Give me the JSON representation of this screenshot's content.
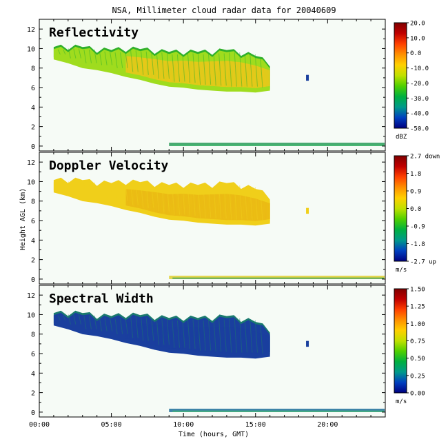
{
  "title": "NSA, Millimeter cloud radar data for 20040609",
  "xlabel": "Time (hours, GMT)",
  "ylabel": "Height AGL (km)",
  "x_ticks": [
    "00:00",
    "05:00",
    "10:00",
    "15:00",
    "20:00"
  ],
  "y_ticks": [
    "0",
    "2",
    "4",
    "6",
    "8",
    "10",
    "12"
  ],
  "chart_data": [
    {
      "type": "heatmap",
      "title": "Reflectivity",
      "xlim": [
        0,
        24
      ],
      "ylim": [
        -0.5,
        13
      ],
      "colorbar": {
        "ticks": [
          "20.0",
          "10.0",
          "0.0",
          "-10.0",
          "-20.0",
          "-30.0",
          "-40.0",
          "-50.0"
        ],
        "unit": "dBZ",
        "range": [
          -50,
          20
        ]
      },
      "cloud": {
        "start_hr": 1.0,
        "end_hr": 16.0,
        "top_km": [
          9.9,
          10.0,
          9.9,
          9.7,
          9.6,
          9.8,
          9.7,
          9.6,
          9.4,
          9.5,
          9.4,
          9.5,
          9.6,
          9.4,
          9.0,
          8.3
        ],
        "base_km": [
          9.1,
          8.7,
          8.2,
          8.0,
          7.7,
          7.3,
          7.0,
          6.6,
          6.3,
          6.2,
          6.0,
          5.9,
          5.8,
          5.8,
          5.7,
          5.9
        ]
      },
      "isolated_echo": {
        "time_hr": 18.6,
        "height_km": 7.0
      },
      "surface_echo_from_hr": 9.0
    },
    {
      "type": "heatmap",
      "title": "Doppler Velocity",
      "xlim": [
        0,
        24
      ],
      "ylim": [
        -0.5,
        13
      ],
      "colorbar": {
        "ticks": [
          "2.7 down",
          "1.8",
          "0.9",
          "0.0",
          "-0.9",
          "-1.8",
          "-2.7 up"
        ],
        "unit": "m/s",
        "range": [
          -2.7,
          2.7
        ]
      },
      "cloud": {
        "start_hr": 1.0,
        "end_hr": 16.0
      },
      "isolated_echo": {
        "time_hr": 18.6,
        "height_km": 7.0
      },
      "surface_echo_from_hr": 9.0
    },
    {
      "type": "heatmap",
      "title": "Spectral Width",
      "xlim": [
        0,
        24
      ],
      "ylim": [
        -0.5,
        13
      ],
      "colorbar": {
        "ticks": [
          "1.50",
          "1.25",
          "1.00",
          "0.75",
          "0.50",
          "0.25",
          "0.00"
        ],
        "unit": "m/s",
        "range": [
          0,
          1.5
        ]
      },
      "cloud": {
        "start_hr": 1.0,
        "end_hr": 16.0
      },
      "isolated_echo": {
        "time_hr": 18.6,
        "height_km": 7.0
      },
      "surface_echo_from_hr": 9.0
    }
  ],
  "colors": {
    "reflectivity_top": "#2fb02a",
    "reflectivity_mid": "#9fdc1e",
    "reflectivity_core": "#f2c418",
    "doppler_cloud": "#f0cf1a",
    "doppler_core": "#eab713",
    "spectral_cloud": "#1a3f9e",
    "spectral_edge": "#1a7a6e",
    "panel_bg": "#f6fbf6",
    "colorbar_stops": [
      "#000080",
      "#0040c0",
      "#009a8a",
      "#00b040",
      "#50d000",
      "#c0e000",
      "#ffd000",
      "#ff9000",
      "#ff4000",
      "#c00000",
      "#800000"
    ]
  }
}
